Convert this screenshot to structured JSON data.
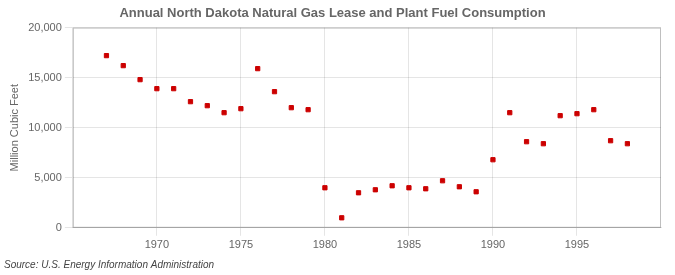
{
  "chart_data": {
    "type": "scatter",
    "title": "Annual North Dakota Natural Gas Lease and Plant Fuel Consumption",
    "ylabel": "Million Cubic Feet",
    "annotations": [
      "Source: U.S. Energy Information Administration"
    ],
    "x": [
      1967,
      1968,
      1969,
      1970,
      1971,
      1972,
      1973,
      1974,
      1975,
      1976,
      1977,
      1978,
      1979,
      1980,
      1981,
      1982,
      1983,
      1984,
      1985,
      1986,
      1987,
      1988,
      1989,
      1990,
      1991,
      1992,
      1993,
      1994,
      1995,
      1996,
      1997,
      1998
    ],
    "values": [
      17200,
      16200,
      14800,
      13900,
      13900,
      12600,
      12200,
      11500,
      11900,
      15900,
      13600,
      12000,
      11800,
      4000,
      1000,
      3500,
      3800,
      4200,
      4000,
      3900,
      4700,
      4100,
      3600,
      6800,
      11500,
      8600,
      8400,
      11200,
      11400,
      11800,
      8700,
      8400
    ],
    "color": "#cc0000",
    "marker": "square",
    "xlim": [
      1965,
      2000
    ],
    "xticks": [
      1970,
      1975,
      1980,
      1985,
      1990,
      1995
    ],
    "ylim": [
      0,
      20000
    ],
    "yticks": [
      0,
      {
        "value": 5000,
        "label": "5,000"
      },
      {
        "value": 10000,
        "label": "10,000"
      },
      {
        "value": 15000,
        "label": "15,000"
      },
      {
        "value": 20000,
        "label": "20,000"
      }
    ],
    "grid": true
  }
}
